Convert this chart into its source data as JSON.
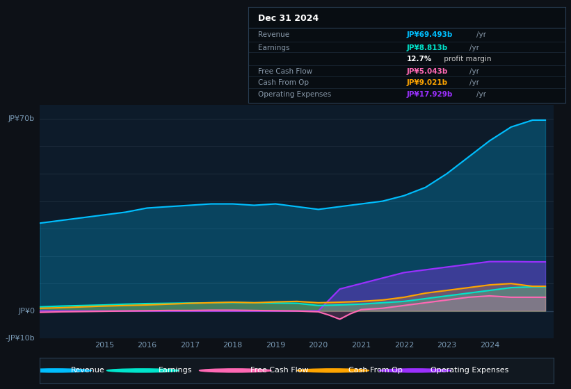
{
  "bg_color": "#0d1117",
  "chart_bg": "#0d1b2a",
  "ylim": [
    -10,
    75
  ],
  "xlim_start": 2013.5,
  "xlim_end": 2025.5,
  "xticks": [
    2015,
    2016,
    2017,
    2018,
    2019,
    2020,
    2021,
    2022,
    2023,
    2024
  ],
  "y_label_top": "JP¥70b",
  "y_label_zero": "JP¥0",
  "y_label_bottom": "-JP¥10b",
  "legend_items": [
    {
      "label": "Revenue",
      "color": "#00bfff"
    },
    {
      "label": "Earnings",
      "color": "#00e5cc"
    },
    {
      "label": "Free Cash Flow",
      "color": "#ff69b4"
    },
    {
      "label": "Cash From Op",
      "color": "#ffa500"
    },
    {
      "label": "Operating Expenses",
      "color": "#9b30ff"
    }
  ],
  "tooltip_date": "Dec 31 2024",
  "tooltip_rows": [
    {
      "label": "Revenue",
      "value": "JP¥69.493b",
      "unit": "/yr",
      "val_color": "#00bfff"
    },
    {
      "label": "Earnings",
      "value": "JP¥8.813b",
      "unit": "/yr",
      "val_color": "#00e5cc"
    },
    {
      "label": "",
      "value": "12.7%",
      "unit": " profit margin",
      "val_color": "#ffffff"
    },
    {
      "label": "Free Cash Flow",
      "value": "JP¥5.043b",
      "unit": "/yr",
      "val_color": "#ff69b4"
    },
    {
      "label": "Cash From Op",
      "value": "JP¥9.021b",
      "unit": "/yr",
      "val_color": "#ffa500"
    },
    {
      "label": "Operating Expenses",
      "value": "JP¥17.929b",
      "unit": "/yr",
      "val_color": "#9b30ff"
    }
  ],
  "revenue": {
    "x": [
      2013.5,
      2014,
      2014.5,
      2015,
      2015.5,
      2016,
      2016.5,
      2017,
      2017.5,
      2018,
      2018.5,
      2019,
      2019.5,
      2020,
      2020.5,
      2021,
      2021.5,
      2022,
      2022.5,
      2023,
      2023.5,
      2024,
      2024.5,
      2025,
      2025.3
    ],
    "y": [
      32,
      33,
      34,
      35,
      36,
      37.5,
      38,
      38.5,
      39,
      39,
      38.5,
      39,
      38,
      37,
      38,
      39,
      40,
      42,
      45,
      50,
      56,
      62,
      67,
      69.5,
      69.5
    ],
    "color": "#00bfff",
    "fill_alpha": 0.25
  },
  "earnings": {
    "x": [
      2013.5,
      2014,
      2014.5,
      2015,
      2015.5,
      2016,
      2016.5,
      2017,
      2017.5,
      2018,
      2018.5,
      2019,
      2019.5,
      2020,
      2020.5,
      2021,
      2021.5,
      2022,
      2022.5,
      2023,
      2023.5,
      2024,
      2024.5,
      2025,
      2025.3
    ],
    "y": [
      1.5,
      1.8,
      2.0,
      2.2,
      2.5,
      2.7,
      2.8,
      2.9,
      3.0,
      3.1,
      3.0,
      2.9,
      2.8,
      2.0,
      2.2,
      2.5,
      3.0,
      3.5,
      4.5,
      5.5,
      6.5,
      7.5,
      8.5,
      8.8,
      8.8
    ],
    "color": "#00e5cc",
    "fill_alpha": 0.3
  },
  "free_cash_flow": {
    "x": [
      2013.5,
      2014,
      2014.5,
      2015,
      2015.5,
      2016,
      2016.5,
      2017,
      2017.5,
      2018,
      2018.5,
      2019,
      2019.5,
      2020,
      2020.25,
      2020.5,
      2020.75,
      2021,
      2021.5,
      2022,
      2022.5,
      2023,
      2023.5,
      2024,
      2024.5,
      2025,
      2025.3
    ],
    "y": [
      -0.5,
      -0.3,
      -0.2,
      -0.1,
      0.0,
      0.1,
      0.2,
      0.2,
      0.3,
      0.3,
      0.2,
      0.1,
      0.0,
      -0.3,
      -1.5,
      -3.0,
      -1.0,
      0.5,
      1.0,
      2.0,
      3.0,
      4.0,
      5.0,
      5.5,
      5.0,
      5.0,
      5.0
    ],
    "color": "#ff69b4",
    "fill_alpha": 0.2
  },
  "cash_from_op": {
    "x": [
      2013.5,
      2014,
      2014.5,
      2015,
      2015.5,
      2016,
      2016.5,
      2017,
      2017.5,
      2018,
      2018.5,
      2019,
      2019.5,
      2020,
      2020.5,
      2021,
      2021.5,
      2022,
      2022.5,
      2023,
      2023.5,
      2024,
      2024.5,
      2025,
      2025.3
    ],
    "y": [
      1.0,
      1.2,
      1.5,
      1.8,
      2.0,
      2.2,
      2.5,
      2.8,
      3.0,
      3.2,
      3.0,
      3.3,
      3.5,
      3.0,
      3.2,
      3.5,
      4.0,
      5.0,
      6.5,
      7.5,
      8.5,
      9.5,
      10.0,
      9.0,
      9.0
    ],
    "color": "#ffa500",
    "fill_alpha": 0.25
  },
  "operating_expenses": {
    "x": [
      2013.5,
      2014,
      2014.5,
      2015,
      2015.5,
      2016,
      2016.5,
      2017,
      2017.5,
      2018,
      2018.5,
      2019,
      2019.5,
      2020,
      2020.5,
      2021,
      2021.5,
      2022,
      2022.5,
      2023,
      2023.5,
      2024,
      2024.5,
      2025,
      2025.3
    ],
    "y": [
      0,
      0,
      0,
      0,
      0,
      0,
      0,
      0,
      0,
      0,
      0,
      0,
      0,
      0,
      8,
      10,
      12,
      14,
      15,
      16,
      17,
      18,
      18,
      17.9,
      17.9
    ],
    "color": "#9b30ff",
    "fill_alpha": 0.35
  },
  "grid_color": "#1e2d3d",
  "zero_line_color": "#2a3f55",
  "tick_color": "#7a9ab5",
  "label_color": "#8899aa",
  "tooltip_bg": "#080d12",
  "tooltip_border": "#2a3f55",
  "legend_bg": "#111820"
}
